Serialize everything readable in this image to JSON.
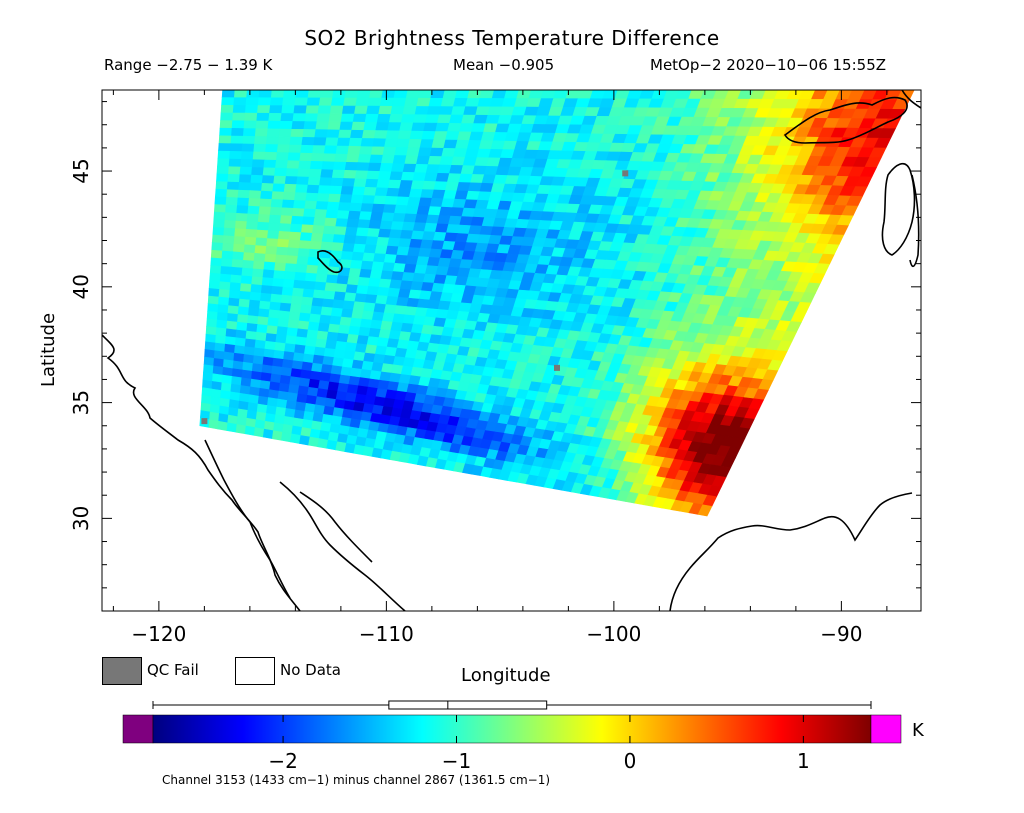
{
  "chart_data": {
    "type": "heatmap",
    "title": "SO2 Brightness Temperature Difference",
    "range_text": "Range −2.75 − 1.39 K",
    "mean_text": "Mean −0.905",
    "satellite_text": "MetOp−2 2020−10−06 15:55Z",
    "xlabel": "Longitude",
    "ylabel": "Latitude",
    "xlim": [
      -122.5,
      -86.5
    ],
    "ylim": [
      26.0,
      48.5
    ],
    "x_ticks": [
      -120,
      -110,
      -100,
      -90
    ],
    "x_tick_labels": [
      "−120",
      "−110",
      "−100",
      "−90"
    ],
    "y_ticks": [
      30,
      35,
      40,
      45
    ],
    "y_tick_labels": [
      "30",
      "35",
      "40",
      "45"
    ],
    "swath": {
      "corners": [
        [
          -117.2,
          48.5
        ],
        [
          -86.8,
          48.5
        ],
        [
          -95.9,
          30.1
        ],
        [
          -118.2,
          34.0
        ]
      ],
      "values_description": "brightness temperature difference field in K"
    },
    "field_features": [
      {
        "name": "low band",
        "lon": -109,
        "lat": 34.5,
        "value": -2.3
      },
      {
        "name": "blue interior",
        "lon": -106,
        "lat": 41.5,
        "value": -1.6
      },
      {
        "name": "warm southeast",
        "lon": -95.5,
        "lat": 33,
        "value": 1.2
      }
    ],
    "qc_fail_points": [
      [
        -118,
        34.2
      ],
      [
        -99.5,
        44.9
      ],
      [
        -102.5,
        36.5
      ]
    ],
    "colorbar": {
      "min": -2.75,
      "max": 1.39,
      "unit": "K",
      "ticks": [
        -2,
        -1,
        0,
        1
      ],
      "tick_labels": [
        "−2",
        "−1",
        "0",
        "1"
      ],
      "colors": [
        "#00007f",
        "#0000ff",
        "#007fff",
        "#00ffff",
        "#7fff7f",
        "#ffff00",
        "#ff7f00",
        "#ff0000",
        "#7f0000"
      ],
      "under_color": "#7f007f",
      "over_color": "#ff00ff",
      "boxplot": {
        "min": -2.75,
        "q1": -1.39,
        "median": -1.05,
        "q3": -0.48,
        "max": 1.39
      }
    },
    "legend": {
      "qc_fail": "QC Fail",
      "no_data": "No Data"
    },
    "footnote": "Channel 3153 (1433 cm−1) minus channel 2867 (1361.5 cm−1)"
  },
  "colors": {
    "qc_fail": "#777777",
    "no_data": "#ffffff",
    "coast": "#000000"
  }
}
